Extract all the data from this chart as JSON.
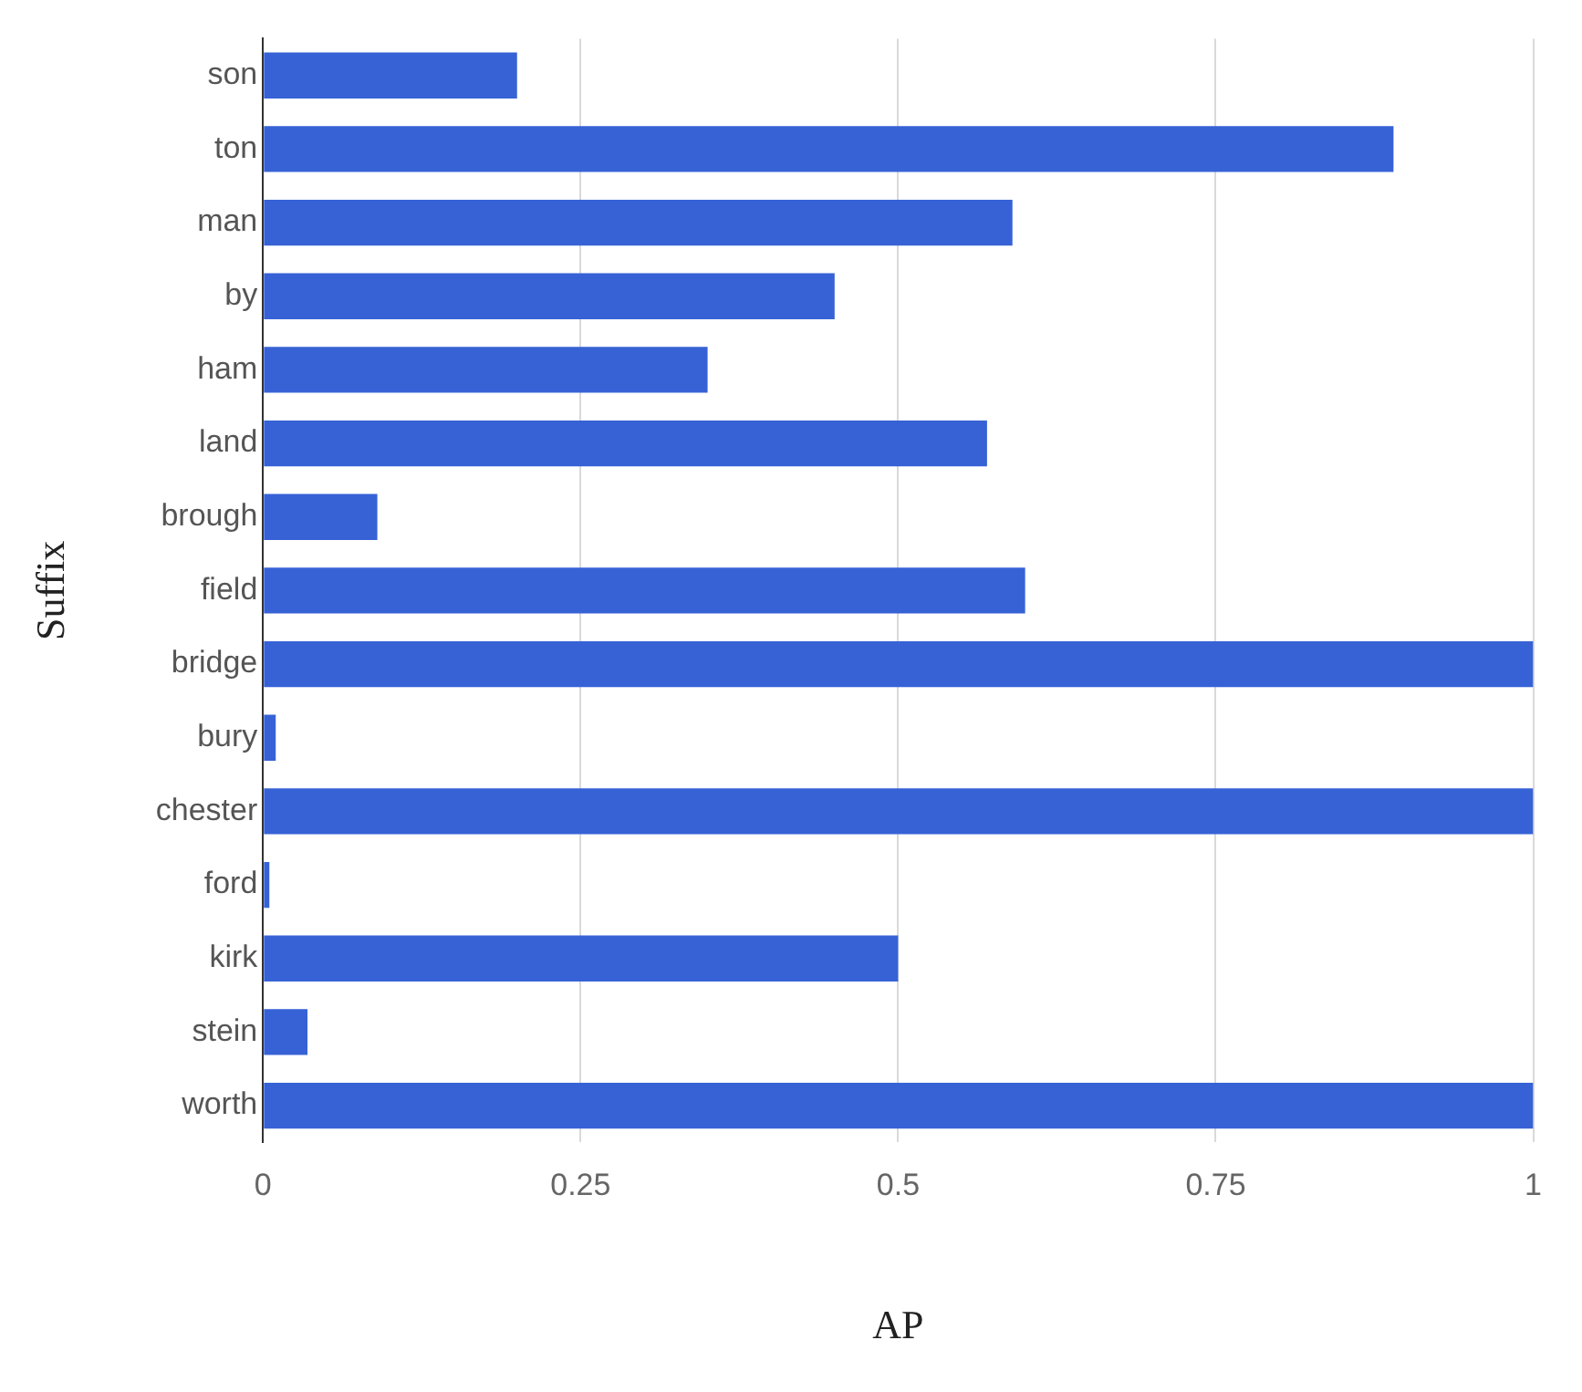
{
  "chart_data": {
    "type": "bar",
    "orientation": "horizontal",
    "xlabel": "AP",
    "ylabel": "Suffix",
    "categories": [
      "son",
      "ton",
      "man",
      "by",
      "ham",
      "land",
      "brough",
      "field",
      "bridge",
      "bury",
      "chester",
      "ford",
      "kirk",
      "stein",
      "worth"
    ],
    "values": [
      0.2,
      0.89,
      0.59,
      0.45,
      0.35,
      0.57,
      0.09,
      0.6,
      1,
      0.01,
      1,
      0.005,
      0.5,
      0.035,
      1
    ],
    "color": "#3762d6",
    "xlim": [
      0,
      1
    ],
    "xticks": [
      0,
      0.25,
      0.5,
      0.75,
      1
    ],
    "grid": "x",
    "legend": false
  }
}
